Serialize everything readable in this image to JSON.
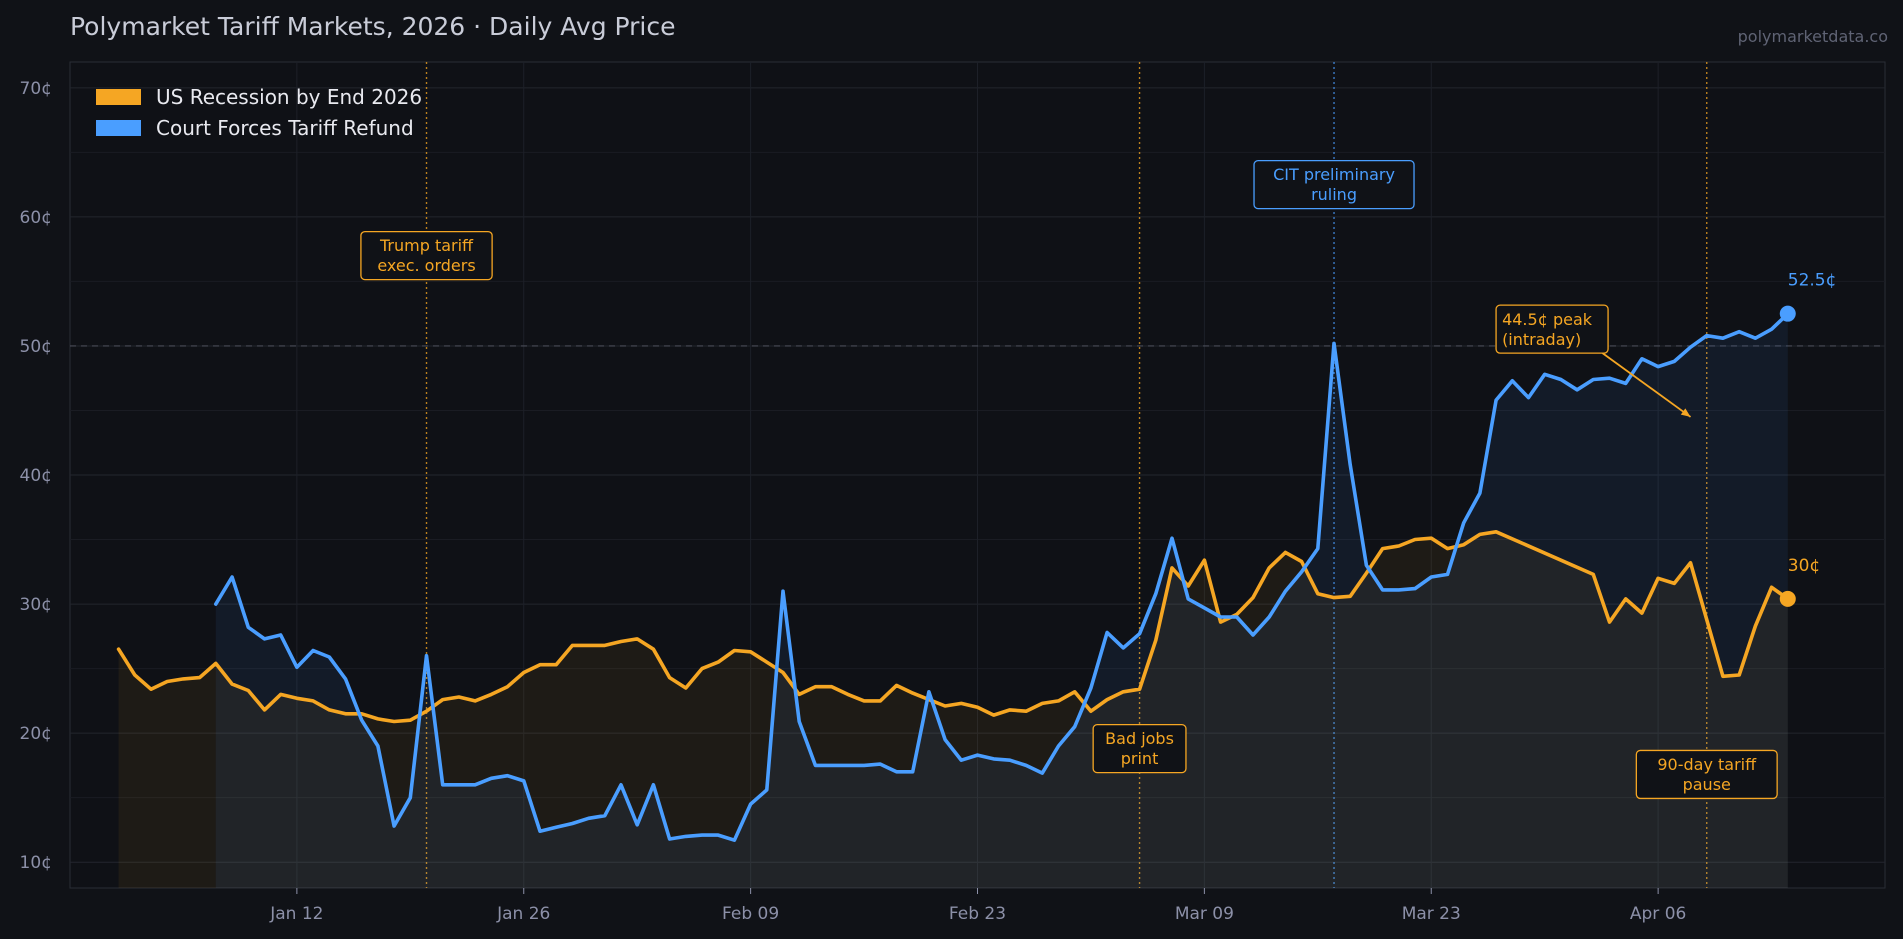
{
  "header": {
    "title": "Polymarket Tariff Markets, 2026  ·  Daily Avg Price",
    "source": "polymarketdata.co"
  },
  "colors": {
    "background": "#101217",
    "plot_background": "#0f1116",
    "recession": "#f5a623",
    "refund": "#4a9eff",
    "grid": "#23262e",
    "text_muted": "#8c90a8"
  },
  "chart_data": {
    "type": "line",
    "x_axis": {
      "type": "date",
      "range": [
        "2025-12-29",
        "2026-04-20"
      ],
      "ticks": [
        {
          "date": "2026-01-12",
          "label": "Jan 12"
        },
        {
          "date": "2026-01-26",
          "label": "Jan 26"
        },
        {
          "date": "2026-02-09",
          "label": "Feb 09"
        },
        {
          "date": "2026-02-23",
          "label": "Feb 23"
        },
        {
          "date": "2026-03-09",
          "label": "Mar 09"
        },
        {
          "date": "2026-03-23",
          "label": "Mar 23"
        },
        {
          "date": "2026-04-06",
          "label": "Apr 06"
        }
      ]
    },
    "y_axis": {
      "range": [
        8,
        72
      ],
      "unit": "¢",
      "ticks": [
        10,
        20,
        30,
        40,
        50,
        60,
        70
      ],
      "tick_labels": [
        "10¢",
        "20¢",
        "30¢",
        "40¢",
        "50¢",
        "60¢",
        "70¢"
      ],
      "reference_line": 50
    },
    "grid": true,
    "legend_position": "top-left",
    "series": [
      {
        "name": "US Recession by End 2026",
        "color": "#f5a623",
        "end_label": "30¢",
        "points": [
          [
            "2026-01-01",
            26.5
          ],
          [
            "2026-01-02",
            24.5
          ],
          [
            "2026-01-03",
            23.4
          ],
          [
            "2026-01-04",
            24.0
          ],
          [
            "2026-01-05",
            24.2
          ],
          [
            "2026-01-06",
            24.3
          ],
          [
            "2026-01-07",
            25.4
          ],
          [
            "2026-01-08",
            23.8
          ],
          [
            "2026-01-09",
            23.3
          ],
          [
            "2026-01-10",
            21.8
          ],
          [
            "2026-01-11",
            23.0
          ],
          [
            "2026-01-12",
            22.7
          ],
          [
            "2026-01-13",
            22.5
          ],
          [
            "2026-01-14",
            21.8
          ],
          [
            "2026-01-15",
            21.5
          ],
          [
            "2026-01-16",
            21.5
          ],
          [
            "2026-01-17",
            21.1
          ],
          [
            "2026-01-18",
            20.9
          ],
          [
            "2026-01-19",
            21.0
          ],
          [
            "2026-01-20",
            21.7
          ],
          [
            "2026-01-21",
            22.6
          ],
          [
            "2026-01-22",
            22.8
          ],
          [
            "2026-01-23",
            22.5
          ],
          [
            "2026-01-24",
            23.0
          ],
          [
            "2026-01-25",
            23.6
          ],
          [
            "2026-01-26",
            24.7
          ],
          [
            "2026-01-27",
            25.3
          ],
          [
            "2026-01-28",
            25.3
          ],
          [
            "2026-01-29",
            26.8
          ],
          [
            "2026-01-30",
            26.8
          ],
          [
            "2026-01-31",
            26.8
          ],
          [
            "2026-02-01",
            27.1
          ],
          [
            "2026-02-02",
            27.3
          ],
          [
            "2026-02-03",
            26.5
          ],
          [
            "2026-02-04",
            24.3
          ],
          [
            "2026-02-05",
            23.5
          ],
          [
            "2026-02-06",
            25.0
          ],
          [
            "2026-02-07",
            25.5
          ],
          [
            "2026-02-08",
            26.4
          ],
          [
            "2026-02-09",
            26.3
          ],
          [
            "2026-02-10",
            25.5
          ],
          [
            "2026-02-11",
            24.7
          ],
          [
            "2026-02-12",
            23.0
          ],
          [
            "2026-02-13",
            23.6
          ],
          [
            "2026-02-14",
            23.6
          ],
          [
            "2026-02-15",
            23.0
          ],
          [
            "2026-02-16",
            22.5
          ],
          [
            "2026-02-17",
            22.5
          ],
          [
            "2026-02-18",
            23.7
          ],
          [
            "2026-02-19",
            23.1
          ],
          [
            "2026-02-20",
            22.6
          ],
          [
            "2026-02-21",
            22.1
          ],
          [
            "2026-02-22",
            22.3
          ],
          [
            "2026-02-23",
            22.0
          ],
          [
            "2026-02-24",
            21.4
          ],
          [
            "2026-02-25",
            21.8
          ],
          [
            "2026-02-26",
            21.7
          ],
          [
            "2026-02-27",
            22.3
          ],
          [
            "2026-02-28",
            22.5
          ],
          [
            "2026-03-01",
            23.2
          ],
          [
            "2026-03-02",
            21.7
          ],
          [
            "2026-03-03",
            22.6
          ],
          [
            "2026-03-04",
            23.2
          ],
          [
            "2026-03-05",
            23.4
          ],
          [
            "2026-03-06",
            27.2
          ],
          [
            "2026-03-07",
            32.8
          ],
          [
            "2026-03-08",
            31.4
          ],
          [
            "2026-03-09",
            33.4
          ],
          [
            "2026-03-10",
            28.6
          ],
          [
            "2026-03-11",
            29.2
          ],
          [
            "2026-03-12",
            30.5
          ],
          [
            "2026-03-13",
            32.8
          ],
          [
            "2026-03-14",
            34.0
          ],
          [
            "2026-03-15",
            33.3
          ],
          [
            "2026-03-16",
            30.8
          ],
          [
            "2026-03-17",
            30.5
          ],
          [
            "2026-03-18",
            30.6
          ],
          [
            "2026-03-19",
            32.4
          ],
          [
            "2026-03-20",
            34.3
          ],
          [
            "2026-03-21",
            34.5
          ],
          [
            "2026-03-22",
            35.0
          ],
          [
            "2026-03-23",
            35.1
          ],
          [
            "2026-03-24",
            34.3
          ],
          [
            "2026-03-25",
            34.6
          ],
          [
            "2026-03-26",
            35.4
          ],
          [
            "2026-03-27",
            35.6
          ],
          [
            "2026-04-02",
            32.3
          ],
          [
            "2026-04-03",
            28.6
          ],
          [
            "2026-04-04",
            30.4
          ],
          [
            "2026-04-05",
            29.3
          ],
          [
            "2026-04-06",
            32.0
          ],
          [
            "2026-04-07",
            31.6
          ],
          [
            "2026-04-08",
            33.2
          ],
          [
            "2026-04-09",
            28.8
          ],
          [
            "2026-04-10",
            24.4
          ],
          [
            "2026-04-11",
            24.5
          ],
          [
            "2026-04-12",
            28.3
          ],
          [
            "2026-04-13",
            31.3
          ],
          [
            "2026-04-14",
            30.4
          ]
        ]
      },
      {
        "name": "Court Forces Tariff Refund",
        "color": "#4a9eff",
        "end_label": "52.5¢",
        "points": [
          [
            "2026-01-07",
            30.0
          ],
          [
            "2026-01-08",
            32.1
          ],
          [
            "2026-01-09",
            28.2
          ],
          [
            "2026-01-10",
            27.3
          ],
          [
            "2026-01-11",
            27.6
          ],
          [
            "2026-01-12",
            25.1
          ],
          [
            "2026-01-13",
            26.4
          ],
          [
            "2026-01-14",
            25.9
          ],
          [
            "2026-01-15",
            24.2
          ],
          [
            "2026-01-16",
            21.0
          ],
          [
            "2026-01-17",
            19.0
          ],
          [
            "2026-01-18",
            12.8
          ],
          [
            "2026-01-19",
            15.0
          ],
          [
            "2026-01-20",
            26.0
          ],
          [
            "2026-01-21",
            16.0
          ],
          [
            "2026-01-22",
            16.0
          ],
          [
            "2026-01-23",
            16.0
          ],
          [
            "2026-01-24",
            16.5
          ],
          [
            "2026-01-25",
            16.7
          ],
          [
            "2026-01-26",
            16.3
          ],
          [
            "2026-01-27",
            12.4
          ],
          [
            "2026-01-28",
            12.7
          ],
          [
            "2026-01-29",
            13.0
          ],
          [
            "2026-01-30",
            13.4
          ],
          [
            "2026-01-31",
            13.6
          ],
          [
            "2026-02-01",
            16.0
          ],
          [
            "2026-02-02",
            12.9
          ],
          [
            "2026-02-03",
            16.0
          ],
          [
            "2026-02-04",
            11.8
          ],
          [
            "2026-02-05",
            12.0
          ],
          [
            "2026-02-06",
            12.1
          ],
          [
            "2026-02-07",
            12.1
          ],
          [
            "2026-02-08",
            11.7
          ],
          [
            "2026-02-09",
            14.5
          ],
          [
            "2026-02-10",
            15.6
          ],
          [
            "2026-02-11",
            31.0
          ],
          [
            "2026-02-12",
            20.9
          ],
          [
            "2026-02-13",
            17.5
          ],
          [
            "2026-02-14",
            17.5
          ],
          [
            "2026-02-15",
            17.5
          ],
          [
            "2026-02-16",
            17.5
          ],
          [
            "2026-02-17",
            17.6
          ],
          [
            "2026-02-18",
            17.0
          ],
          [
            "2026-02-19",
            17.0
          ],
          [
            "2026-02-20",
            23.2
          ],
          [
            "2026-02-21",
            19.5
          ],
          [
            "2026-02-22",
            17.9
          ],
          [
            "2026-02-23",
            18.3
          ],
          [
            "2026-02-24",
            18.0
          ],
          [
            "2026-02-25",
            17.9
          ],
          [
            "2026-02-26",
            17.5
          ],
          [
            "2026-02-27",
            16.9
          ],
          [
            "2026-02-28",
            19.0
          ],
          [
            "2026-03-01",
            20.5
          ],
          [
            "2026-03-02",
            23.5
          ],
          [
            "2026-03-03",
            27.8
          ],
          [
            "2026-03-04",
            26.6
          ],
          [
            "2026-03-05",
            27.7
          ],
          [
            "2026-03-06",
            30.8
          ],
          [
            "2026-03-07",
            35.1
          ],
          [
            "2026-03-08",
            30.4
          ],
          [
            "2026-03-09",
            29.7
          ],
          [
            "2026-03-10",
            29.0
          ],
          [
            "2026-03-11",
            29.0
          ],
          [
            "2026-03-12",
            27.6
          ],
          [
            "2026-03-13",
            29.0
          ],
          [
            "2026-03-14",
            31.0
          ],
          [
            "2026-03-15",
            32.5
          ],
          [
            "2026-03-16",
            34.3
          ],
          [
            "2026-03-17",
            50.2
          ],
          [
            "2026-03-18",
            40.8
          ],
          [
            "2026-03-19",
            33.0
          ],
          [
            "2026-03-20",
            31.1
          ],
          [
            "2026-03-21",
            31.1
          ],
          [
            "2026-03-22",
            31.2
          ],
          [
            "2026-03-23",
            32.1
          ],
          [
            "2026-03-24",
            32.3
          ],
          [
            "2026-03-25",
            36.3
          ],
          [
            "2026-03-26",
            38.6
          ],
          [
            "2026-03-27",
            45.8
          ],
          [
            "2026-03-28",
            47.3
          ],
          [
            "2026-03-29",
            46.0
          ],
          [
            "2026-03-30",
            47.8
          ],
          [
            "2026-03-31",
            47.4
          ],
          [
            "2026-04-01",
            46.6
          ],
          [
            "2026-04-02",
            47.4
          ],
          [
            "2026-04-03",
            47.5
          ],
          [
            "2026-04-04",
            47.1
          ],
          [
            "2026-04-05",
            49.0
          ],
          [
            "2026-04-06",
            48.4
          ],
          [
            "2026-04-07",
            48.8
          ],
          [
            "2026-04-08",
            49.9
          ],
          [
            "2026-04-09",
            50.8
          ],
          [
            "2026-04-10",
            50.6
          ],
          [
            "2026-04-11",
            51.1
          ],
          [
            "2026-04-12",
            50.6
          ],
          [
            "2026-04-13",
            51.3
          ],
          [
            "2026-04-14",
            52.5
          ]
        ]
      }
    ],
    "event_lines": [
      {
        "date": "2026-01-20",
        "series": "US Recession by End 2026",
        "label": [
          "Trump tariff",
          "exec. orders"
        ],
        "label_y": 57.0
      },
      {
        "date": "2026-03-05",
        "series": "US Recession by End 2026",
        "label": [
          "Bad jobs",
          "print"
        ],
        "label_y": 18.8
      },
      {
        "date": "2026-03-17",
        "series": "Court Forces Tariff Refund",
        "label": [
          "CIT preliminary",
          "ruling"
        ],
        "label_y": 62.5
      },
      {
        "date": "2026-04-09",
        "series": "US Recession by End 2026",
        "label": [
          "90-day tariff",
          "pause"
        ],
        "label_y": 16.8
      }
    ],
    "annotations": [
      {
        "text": [
          "44.5¢ peak",
          "(intraday)"
        ],
        "series": "US Recession by End 2026",
        "text_date": "2026-03-27",
        "text_y": 51.3,
        "arrow_to_date": "2026-04-08",
        "arrow_to_y": 44.5
      }
    ]
  }
}
